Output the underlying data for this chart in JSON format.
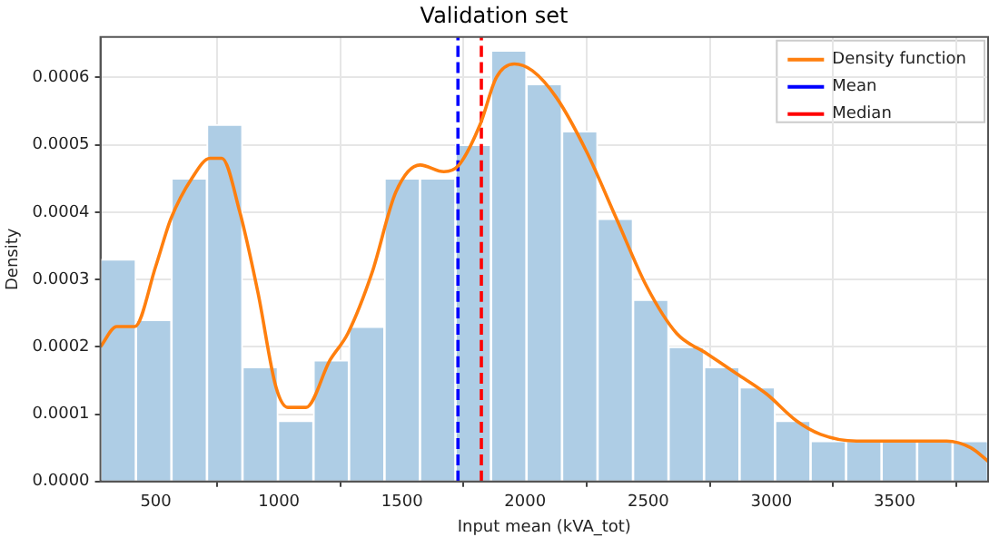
{
  "chart_data": {
    "type": "histogram",
    "title": "Validation set",
    "xlabel": "Input mean (kVA_tot)",
    "ylabel": "Density",
    "bins": [
      275,
      419.2,
      563.4,
      707.6,
      851.8,
      996,
      1140.2,
      1284.4,
      1428.6,
      1572.8,
      1717,
      1861.2,
      2005.4,
      2149.6,
      2293.8,
      2438,
      2582.2,
      2726.4,
      2870.6,
      3014.8,
      3159,
      3303.2,
      3447.4,
      3591.6,
      3735.8,
      3880
    ],
    "values": [
      0.00033,
      0.00024,
      0.00045,
      0.00053,
      0.00017,
      9e-05,
      0.00018,
      0.00023,
      0.00045,
      0.00045,
      0.0005,
      0.00064,
      0.00059,
      0.00052,
      0.00039,
      0.00027,
      0.0002,
      0.00017,
      0.00014,
      9e-05,
      6e-05,
      6e-05,
      6e-05,
      6e-05,
      6e-05
    ],
    "color": "#aecde5",
    "series": [
      {
        "name": "Density function",
        "type": "line",
        "color": "#ff7f0e",
        "x": [
          275,
          341,
          414,
          500,
          561,
          646,
          720,
          768,
          841,
          915,
          988,
          1036,
          1110,
          1207,
          1280,
          1378,
          1475,
          1573,
          1670,
          1731,
          1817,
          1883,
          1956,
          2029,
          2127,
          2249,
          2371,
          2493,
          2615,
          2737,
          2859,
          2980,
          3102,
          3200,
          3346,
          3493,
          3590,
          3712,
          3810,
          3880
        ],
        "values": [
          0.0002,
          0.00023,
          0.00023,
          0.00032,
          0.00039,
          0.00045,
          0.00048,
          0.00048,
          0.0004,
          0.00028,
          0.00014,
          0.00011,
          0.00011,
          0.00018,
          0.00022,
          0.00031,
          0.00043,
          0.00047,
          0.00046,
          0.00047,
          0.00053,
          0.0006,
          0.00062,
          0.00061,
          0.00057,
          0.00049,
          0.00039,
          0.00029,
          0.00022,
          0.00019,
          0.00016,
          0.00013,
          9e-05,
          7e-05,
          6e-05,
          6e-05,
          6e-05,
          6e-05,
          5e-05,
          3e-05
        ]
      },
      {
        "name": "Mean",
        "type": "line",
        "color": "#0000ff",
        "line_style": "dashed",
        "x": [
          1727,
          1727
        ],
        "values": [
          0,
          0.00066
        ]
      },
      {
        "name": "Median",
        "type": "line",
        "color": "#ff0000",
        "line_style": "dashed",
        "x": [
          1822,
          1822
        ],
        "values": [
          0,
          0.00066
        ]
      }
    ],
    "xlim": [
      275,
      3880
    ],
    "xticks": [
      500,
      1000,
      1500,
      2000,
      2500,
      3000,
      3500
    ],
    "ylim": [
      0,
      0.00066
    ],
    "yticks": [
      {
        "value": 0,
        "label": "0.0000"
      },
      {
        "value": 0.0001,
        "label": "0.0001"
      },
      {
        "value": 0.0002,
        "label": "0.0002"
      },
      {
        "value": 0.0003,
        "label": "0.0003"
      },
      {
        "value": 0.0004,
        "label": "0.0004"
      },
      {
        "value": 0.0005,
        "label": "0.0005"
      },
      {
        "value": 0.0006,
        "label": "0.0006"
      }
    ],
    "grid": true,
    "legend": "top right"
  }
}
